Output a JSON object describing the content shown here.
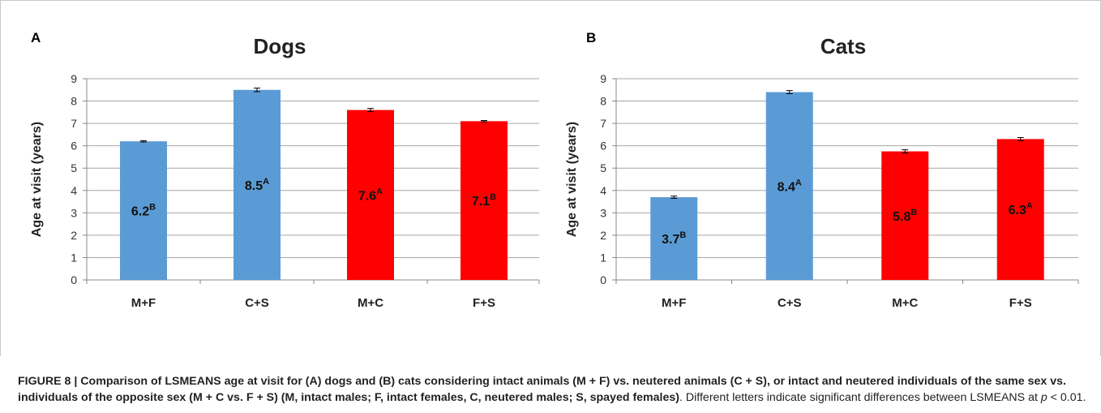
{
  "chart_data": [
    {
      "type": "bar",
      "panel_label": "A",
      "title": "Dogs",
      "xlabel": "",
      "ylabel": "Age at visit (years)",
      "ylim": [
        0,
        9
      ],
      "yticks": [
        0,
        1,
        2,
        3,
        4,
        5,
        6,
        7,
        8,
        9
      ],
      "grid": true,
      "categories": [
        "M+F",
        "C+S",
        "M+C",
        "F+S"
      ],
      "values": [
        6.2,
        8.5,
        7.6,
        7.1
      ],
      "errors": [
        0.03,
        0.08,
        0.07,
        0.03
      ],
      "colors": [
        "#5b9bd5",
        "#5b9bd5",
        "#ff0000",
        "#ff0000"
      ],
      "data_labels": [
        "6.2",
        "8.5",
        "7.6",
        "7.1"
      ],
      "superscripts": [
        "B",
        "A",
        "A",
        "B"
      ]
    },
    {
      "type": "bar",
      "panel_label": "B",
      "title": "Cats",
      "xlabel": "",
      "ylabel": "Age at visit (years)",
      "ylim": [
        0,
        9
      ],
      "yticks": [
        0,
        1,
        2,
        3,
        4,
        5,
        6,
        7,
        8,
        9
      ],
      "grid": true,
      "categories": [
        "M+F",
        "C+S",
        "M+C",
        "F+S"
      ],
      "values": [
        3.7,
        8.4,
        5.75,
        6.3
      ],
      "errors": [
        0.05,
        0.07,
        0.07,
        0.07
      ],
      "colors": [
        "#5b9bd5",
        "#5b9bd5",
        "#ff0000",
        "#ff0000"
      ],
      "data_labels": [
        "3.7",
        "8.4",
        "5.8",
        "6.3"
      ],
      "superscripts": [
        "B",
        "A",
        "B",
        "A"
      ]
    }
  ],
  "caption": {
    "label": "FIGURE 8 |",
    "bold_text": "Comparison of LSMEANS age at visit for (A) dogs and (B) cats considering intact animals (M + F) vs. neutered animals (C + S), or intact and neutered individuals of the same sex vs. individuals of the opposite sex (M + C vs. F + S) (M, intact males; F, intact females, C, neutered males; S, spayed females)",
    "text_before_p": ". Different letters indicate significant differences between LSMEANS at ",
    "p_symbol": "p",
    "text_after_p": " < 0.01."
  }
}
